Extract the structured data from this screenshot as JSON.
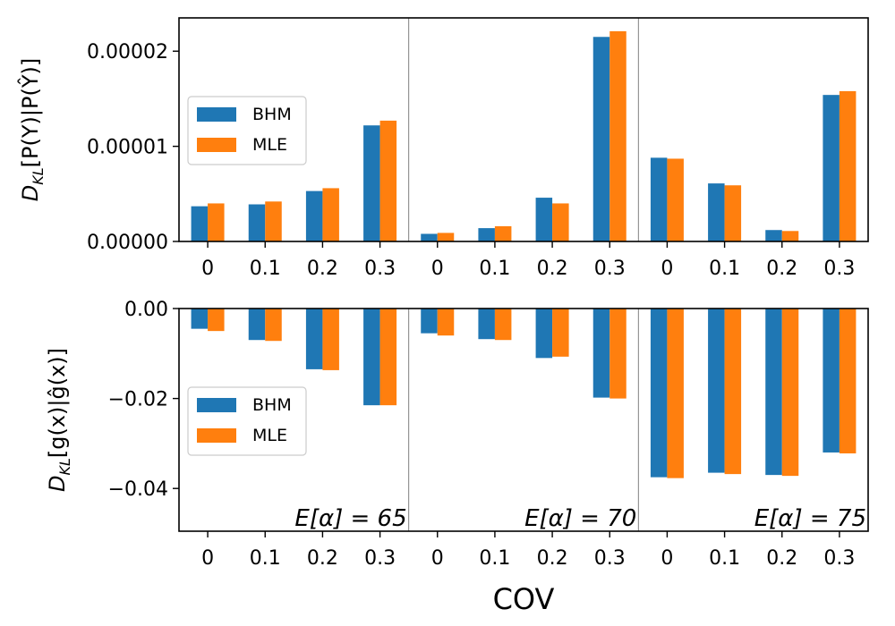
{
  "chart_data": [
    {
      "type": "bar",
      "panel": "top",
      "ylabel": "D_KL[P(Y)|P(Ŷ)]",
      "ylabel_main": "D",
      "ylabel_sub": "KL",
      "ylabel_rest": "[P(Y)|P(Ŷ)]",
      "ylim": [
        0,
        2.35e-05
      ],
      "yticks": [
        0,
        1e-05,
        2e-05
      ],
      "ytick_labels": [
        "0.00000",
        "0.00001",
        "0.00002"
      ],
      "categories": [
        "0",
        "0.1",
        "0.2",
        "0.3",
        "0",
        "0.1",
        "0.2",
        "0.3",
        "0",
        "0.1",
        "0.2",
        "0.3"
      ],
      "series": [
        {
          "name": "BHM",
          "color": "#1f77b4",
          "values": [
            3.7e-06,
            3.9e-06,
            5.3e-06,
            1.22e-05,
            8e-07,
            1.4e-06,
            4.6e-06,
            2.15e-05,
            8.8e-06,
            6.1e-06,
            1.2e-06,
            1.54e-05
          ]
        },
        {
          "name": "MLE",
          "color": "#ff7f0e",
          "values": [
            4e-06,
            4.2e-06,
            5.6e-06,
            1.27e-05,
            9e-07,
            1.6e-06,
            4e-06,
            2.21e-05,
            8.7e-06,
            5.9e-06,
            1.1e-06,
            1.58e-05
          ]
        }
      ],
      "legend": [
        "BHM",
        "MLE"
      ],
      "legend_position": "center-left"
    },
    {
      "type": "bar",
      "panel": "bottom",
      "ylabel": "D_KL[g(x)|ĝ(x)]",
      "ylabel_main": "D",
      "ylabel_sub": "KL",
      "ylabel_rest": "[g(x)|ĝ(x)]",
      "ylim": [
        -0.0495,
        0
      ],
      "yticks": [
        0,
        -0.02,
        -0.04
      ],
      "ytick_labels": [
        "0.00",
        "−0.02",
        "−0.04"
      ],
      "categories": [
        "0",
        "0.1",
        "0.2",
        "0.3",
        "0",
        "0.1",
        "0.2",
        "0.3",
        "0",
        "0.1",
        "0.2",
        "0.3"
      ],
      "series": [
        {
          "name": "BHM",
          "color": "#1f77b4",
          "values": [
            -0.0045,
            -0.007,
            -0.0135,
            -0.0215,
            -0.0055,
            -0.0068,
            -0.011,
            -0.0198,
            -0.0375,
            -0.0365,
            -0.037,
            -0.032
          ]
        },
        {
          "name": "MLE",
          "color": "#ff7f0e",
          "values": [
            -0.005,
            -0.0072,
            -0.0137,
            -0.0215,
            -0.006,
            -0.007,
            -0.0107,
            -0.02,
            -0.0377,
            -0.0368,
            -0.0372,
            -0.0322
          ]
        }
      ],
      "legend": [
        "BHM",
        "MLE"
      ],
      "legend_position": "center-left",
      "annotations": [
        "E[α] = 65",
        "E[α] = 70",
        "E[α] = 75"
      ]
    }
  ],
  "xlabel": "COV"
}
